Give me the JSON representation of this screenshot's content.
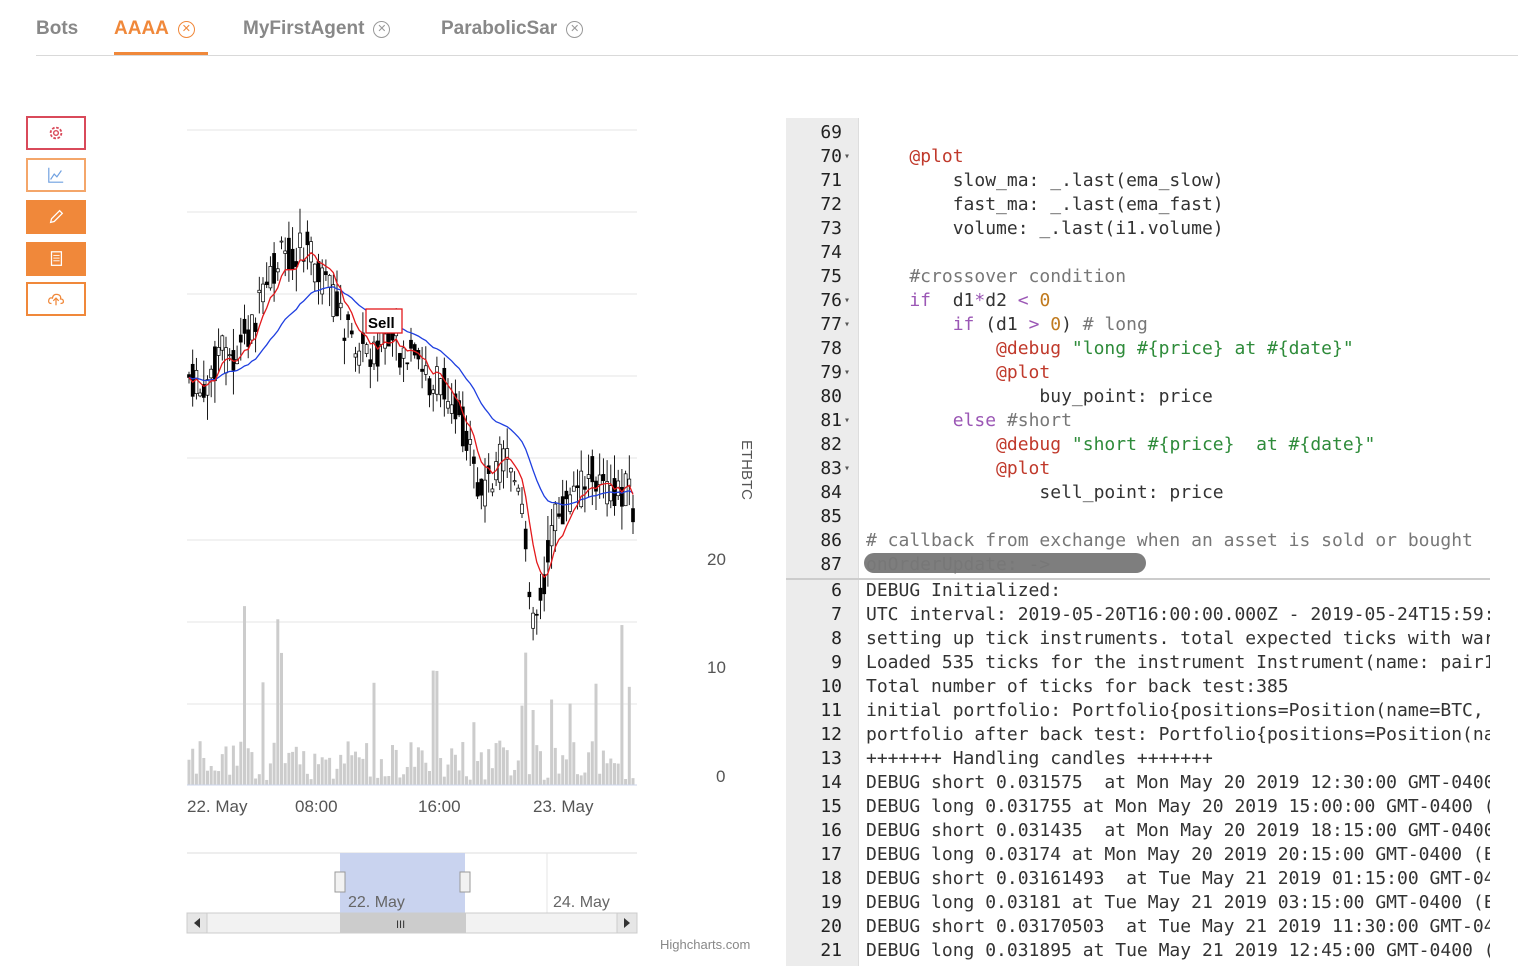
{
  "tabs": [
    {
      "label": "Bots",
      "closable": false,
      "active": false
    },
    {
      "label": "AAAA",
      "closable": true,
      "active": true
    },
    {
      "label": "MyFirstAgent",
      "closable": true,
      "active": false
    },
    {
      "label": "ParabolicSar",
      "closable": true,
      "active": false
    }
  ],
  "toolbar": [
    {
      "name": "settings-button",
      "icon": "gear-icon",
      "style": "outline-red"
    },
    {
      "name": "chart-button",
      "icon": "line-chart-icon",
      "style": "outline-orange"
    },
    {
      "name": "edit-button",
      "icon": "pencil-icon",
      "style": "filled-orange"
    },
    {
      "name": "log-button",
      "icon": "document-icon",
      "style": "filled-orange"
    },
    {
      "name": "upload-button",
      "icon": "cloud-upload-icon",
      "style": "outline-orange"
    }
  ],
  "chart": {
    "axis_title": "ETHBTC",
    "y_ticks": [
      "20",
      "10",
      "0"
    ],
    "x_ticks": [
      "22. May",
      "08:00",
      "16:00",
      "23. May"
    ],
    "navigator_labels": [
      "22. May",
      "24. May"
    ],
    "flag_label": "Sell",
    "credits": "Highcharts.com",
    "colors": {
      "ema_fast": "#e3191c",
      "ema_slow": "#1f3fe0",
      "volume": "#cccccc",
      "navigator": "#b8c7ee"
    }
  },
  "chart_data": {
    "type": "candlestick",
    "series": [
      {
        "name": "ETHBTC",
        "kind": "ohlc"
      },
      {
        "name": "ema_fast",
        "kind": "line"
      },
      {
        "name": "ema_slow",
        "kind": "line"
      },
      {
        "name": "volume",
        "kind": "column"
      }
    ],
    "volume_axis_ticks": [
      0,
      10,
      20
    ],
    "x_range": [
      "22. May",
      "23. May"
    ],
    "annotations": [
      {
        "type": "flag",
        "label": "Sell"
      }
    ]
  },
  "editor": {
    "lines": [
      {
        "n": "69",
        "fold": false,
        "code": []
      },
      {
        "n": "70",
        "fold": true,
        "code": [
          [
            "",
            "    "
          ],
          [
            "at",
            "@plot"
          ]
        ]
      },
      {
        "n": "71",
        "fold": false,
        "code": [
          [
            "",
            "        slow_ma: _.last(ema_slow)"
          ]
        ]
      },
      {
        "n": "72",
        "fold": false,
        "code": [
          [
            "",
            "        fast_ma: _.last(ema_fast)"
          ]
        ]
      },
      {
        "n": "73",
        "fold": false,
        "code": [
          [
            "",
            "        volume: _.last(i1.volume)"
          ]
        ]
      },
      {
        "n": "74",
        "fold": false,
        "code": []
      },
      {
        "n": "75",
        "fold": false,
        "code": [
          [
            "cm",
            "    #crossover condition"
          ]
        ]
      },
      {
        "n": "76",
        "fold": true,
        "code": [
          [
            "kw",
            "    if"
          ],
          [
            "",
            "  d1"
          ],
          [
            "op",
            "*"
          ],
          [
            "",
            "d2 "
          ],
          [
            "op",
            "<"
          ],
          [
            "",
            " "
          ],
          [
            "num",
            "0"
          ]
        ]
      },
      {
        "n": "77",
        "fold": true,
        "code": [
          [
            "kw",
            "        if"
          ],
          [
            "",
            " (d1 "
          ],
          [
            "op",
            ">"
          ],
          [
            "",
            " "
          ],
          [
            "num",
            "0"
          ],
          [
            "",
            ") "
          ],
          [
            "cm",
            "# long"
          ]
        ]
      },
      {
        "n": "78",
        "fold": false,
        "code": [
          [
            "",
            "            "
          ],
          [
            "at",
            "@debug"
          ],
          [
            "",
            " "
          ],
          [
            "str",
            "\"long #{price} at #{date}\""
          ]
        ]
      },
      {
        "n": "79",
        "fold": true,
        "code": [
          [
            "",
            "            "
          ],
          [
            "at",
            "@plot"
          ]
        ]
      },
      {
        "n": "80",
        "fold": false,
        "code": [
          [
            "",
            "                buy_point: price"
          ]
        ]
      },
      {
        "n": "81",
        "fold": true,
        "code": [
          [
            "kw",
            "        else"
          ],
          [
            "",
            " "
          ],
          [
            "cm",
            "#short"
          ]
        ]
      },
      {
        "n": "82",
        "fold": false,
        "code": [
          [
            "",
            "            "
          ],
          [
            "at",
            "@debug"
          ],
          [
            "",
            " "
          ],
          [
            "str",
            "\"short #{price}  at #{date}\""
          ]
        ]
      },
      {
        "n": "83",
        "fold": true,
        "code": [
          [
            "",
            "            "
          ],
          [
            "at",
            "@plot"
          ]
        ]
      },
      {
        "n": "84",
        "fold": false,
        "code": [
          [
            "",
            "                sell_point: price"
          ]
        ]
      },
      {
        "n": "85",
        "fold": false,
        "code": []
      },
      {
        "n": "86",
        "fold": false,
        "code": [
          [
            "cm",
            "# callback from exchange when an asset is sold or bought"
          ]
        ]
      },
      {
        "n": "87",
        "fold": false,
        "code": [
          [
            "cm",
            "onOrderUpdate: ->"
          ]
        ]
      }
    ]
  },
  "console": {
    "lines": [
      {
        "n": "6",
        "text": "DEBUG Initialized:"
      },
      {
        "n": "7",
        "text": "UTC interval: 2019-05-20T16:00:00.000Z - 2019-05-24T15:59:"
      },
      {
        "n": "8",
        "text": "setting up tick instruments. total expected ticks with war"
      },
      {
        "n": "9",
        "text": "Loaded 535 ticks for the instrument Instrument(name: pair1"
      },
      {
        "n": "10",
        "text": "Total number of ticks for back test:385"
      },
      {
        "n": "11",
        "text": "initial portfolio: Portfolio{positions=Position(name=BTC,"
      },
      {
        "n": "12",
        "text": "portfolio after back test: Portfolio{positions=Position(na"
      },
      {
        "n": "13",
        "text": "+++++++ Handling candles +++++++"
      },
      {
        "n": "14",
        "text": "DEBUG short 0.031575  at Mon May 20 2019 12:30:00 GMT-0400"
      },
      {
        "n": "15",
        "text": "DEBUG long 0.031755 at Mon May 20 2019 15:00:00 GMT-0400 ("
      },
      {
        "n": "16",
        "text": "DEBUG short 0.031435  at Mon May 20 2019 18:15:00 GMT-0400"
      },
      {
        "n": "17",
        "text": "DEBUG long 0.03174 at Mon May 20 2019 20:15:00 GMT-0400 (E"
      },
      {
        "n": "18",
        "text": "DEBUG short 0.03161493  at Tue May 21 2019 01:15:00 GMT-04"
      },
      {
        "n": "19",
        "text": "DEBUG long 0.03181 at Tue May 21 2019 03:15:00 GMT-0400 (E"
      },
      {
        "n": "20",
        "text": "DEBUG short 0.03170503  at Tue May 21 2019 11:30:00 GMT-04"
      },
      {
        "n": "21",
        "text": "DEBUG long 0.031895 at Tue May 21 2019 12:45:00 GMT-0400 ("
      }
    ]
  }
}
